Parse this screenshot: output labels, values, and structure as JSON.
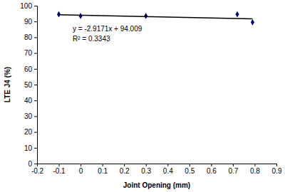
{
  "chart_data": {
    "type": "scatter",
    "x_label": "Joint Opening (mm)",
    "y_label": "LTE J4 (%)",
    "annotations": [
      "y = -2.9171x + 94.009",
      "R² = 0.3343"
    ],
    "series": [
      {
        "type": "scatter",
        "marker": "diamond",
        "color": "#000080",
        "x": [
          -0.1,
          0,
          0.3,
          0.72,
          0.79
        ],
        "values": [
          94.5,
          93.5,
          93.5,
          94.5,
          89.5
        ]
      },
      {
        "type": "line",
        "line_style": "solid",
        "color": "#000000",
        "x": [
          -0.1,
          0.79
        ],
        "values": [
          94.3,
          91.7
        ]
      }
    ],
    "xlim": [
      -0.2,
      0.9
    ],
    "xticks": [
      -0.2,
      -0.1,
      0,
      0.1,
      0.2,
      0.3,
      0.4,
      0.5,
      0.6,
      0.7,
      0.8,
      0.9
    ],
    "ylim": [
      0,
      100
    ],
    "yticks": [
      0,
      10,
      20,
      30,
      40,
      50,
      60,
      70,
      80,
      90,
      100
    ],
    "grid": false
  }
}
